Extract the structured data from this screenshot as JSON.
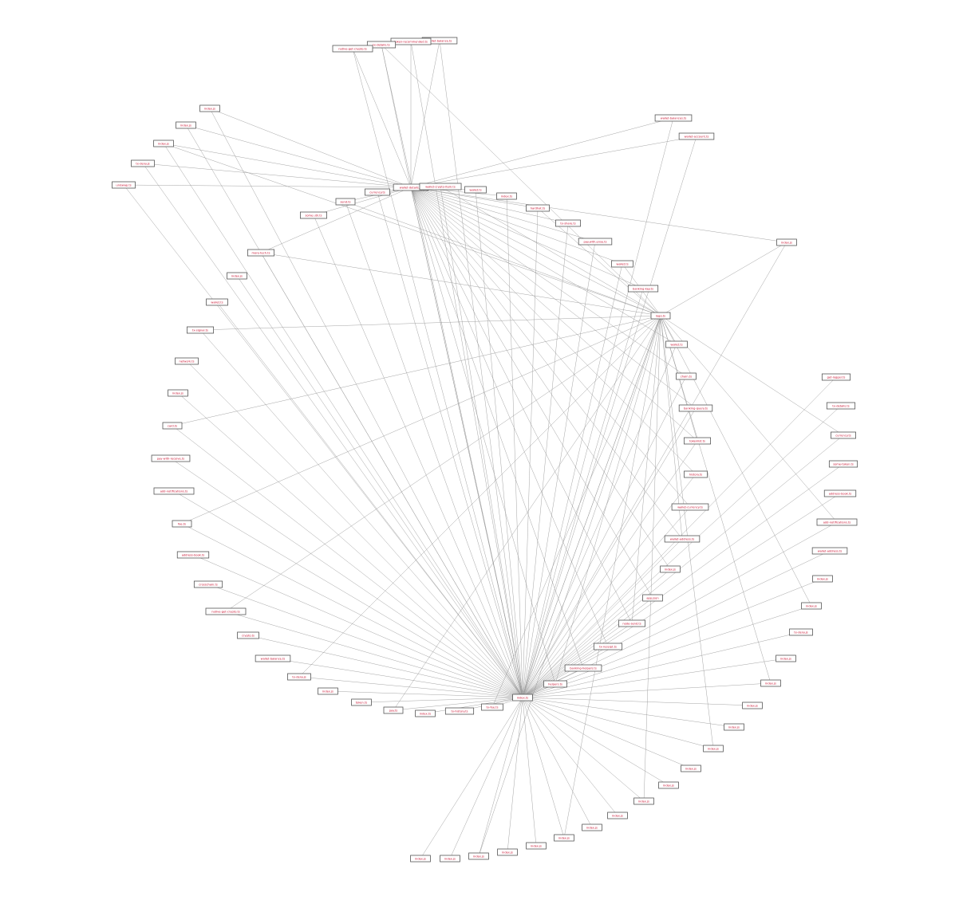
{
  "diagram": {
    "type": "dependency-graph",
    "colors": {
      "node_text": "#c8102e",
      "node_border": "#555555",
      "edge": "#9a9a9a",
      "background": "#ffffff"
    },
    "nodes": [
      "index.ts",
      "wallet-balance.ts",
      "token-recommended.ts",
      "tx-details.ts",
      "native-get-crypto.ts",
      "wallet-details.ts",
      "wallet-crypto-item.ts",
      "wallet.ts",
      "index.ts",
      "hardhat.ts",
      "wallet-balances.ts",
      "wallet-account.ts",
      "index.js",
      "index.js",
      "index.js",
      "index.js",
      "tx-deny.js",
      "uniswap.ts",
      "more-tech.ts",
      "currency.ts",
      "some.util.ts",
      "send.ts",
      "tx-share.ts",
      "pay.with.ense.ts",
      "wallet.ts",
      "banking-key.ts",
      "logo.ts",
      "wallet.ts",
      "chain.ts",
      "banking-query.ts",
      "tokenlist.ts",
      "history.ts",
      "wallet-currency.ts",
      "wallet-address.ts",
      "index.js",
      "app.json",
      "node-send.ts",
      "tx-receipt.ts",
      "banking-helpers.ts",
      "helpers.ts",
      "index.js",
      "wallet.ts",
      "tx-signal.ts",
      "network.ts",
      "index.js",
      "card.ts",
      "pay-with-receive.ts",
      "add-notifications.ts",
      "fee.ts",
      "address-book.ts",
      "crosschain.ts",
      "native-get-crypto.ts",
      "crypto.ts",
      "wallet-balance.ts",
      "tx-deny.js",
      "index.js",
      "token.ts",
      "pay.ts",
      "index.ts",
      "tx-history.ts",
      "tx-fee.ts",
      "get-logger.ts",
      "tx-details.ts",
      "currency.ts",
      "some-token.ts",
      "address-book.ts",
      "add-notifications.ts",
      "wallet-address.ts",
      "index.js",
      "index.js",
      "tx-deny.js",
      "index.js",
      "index.js",
      "index.js",
      "index.js",
      "index.js",
      "index.js",
      "index.js",
      "index.js",
      "index.js",
      "index.js",
      "index.js",
      "index.js",
      "index.js",
      "index.js",
      "index.js",
      "index.js"
    ],
    "edge_label": "/src/providers/swaps/wallet/index.ts"
  }
}
